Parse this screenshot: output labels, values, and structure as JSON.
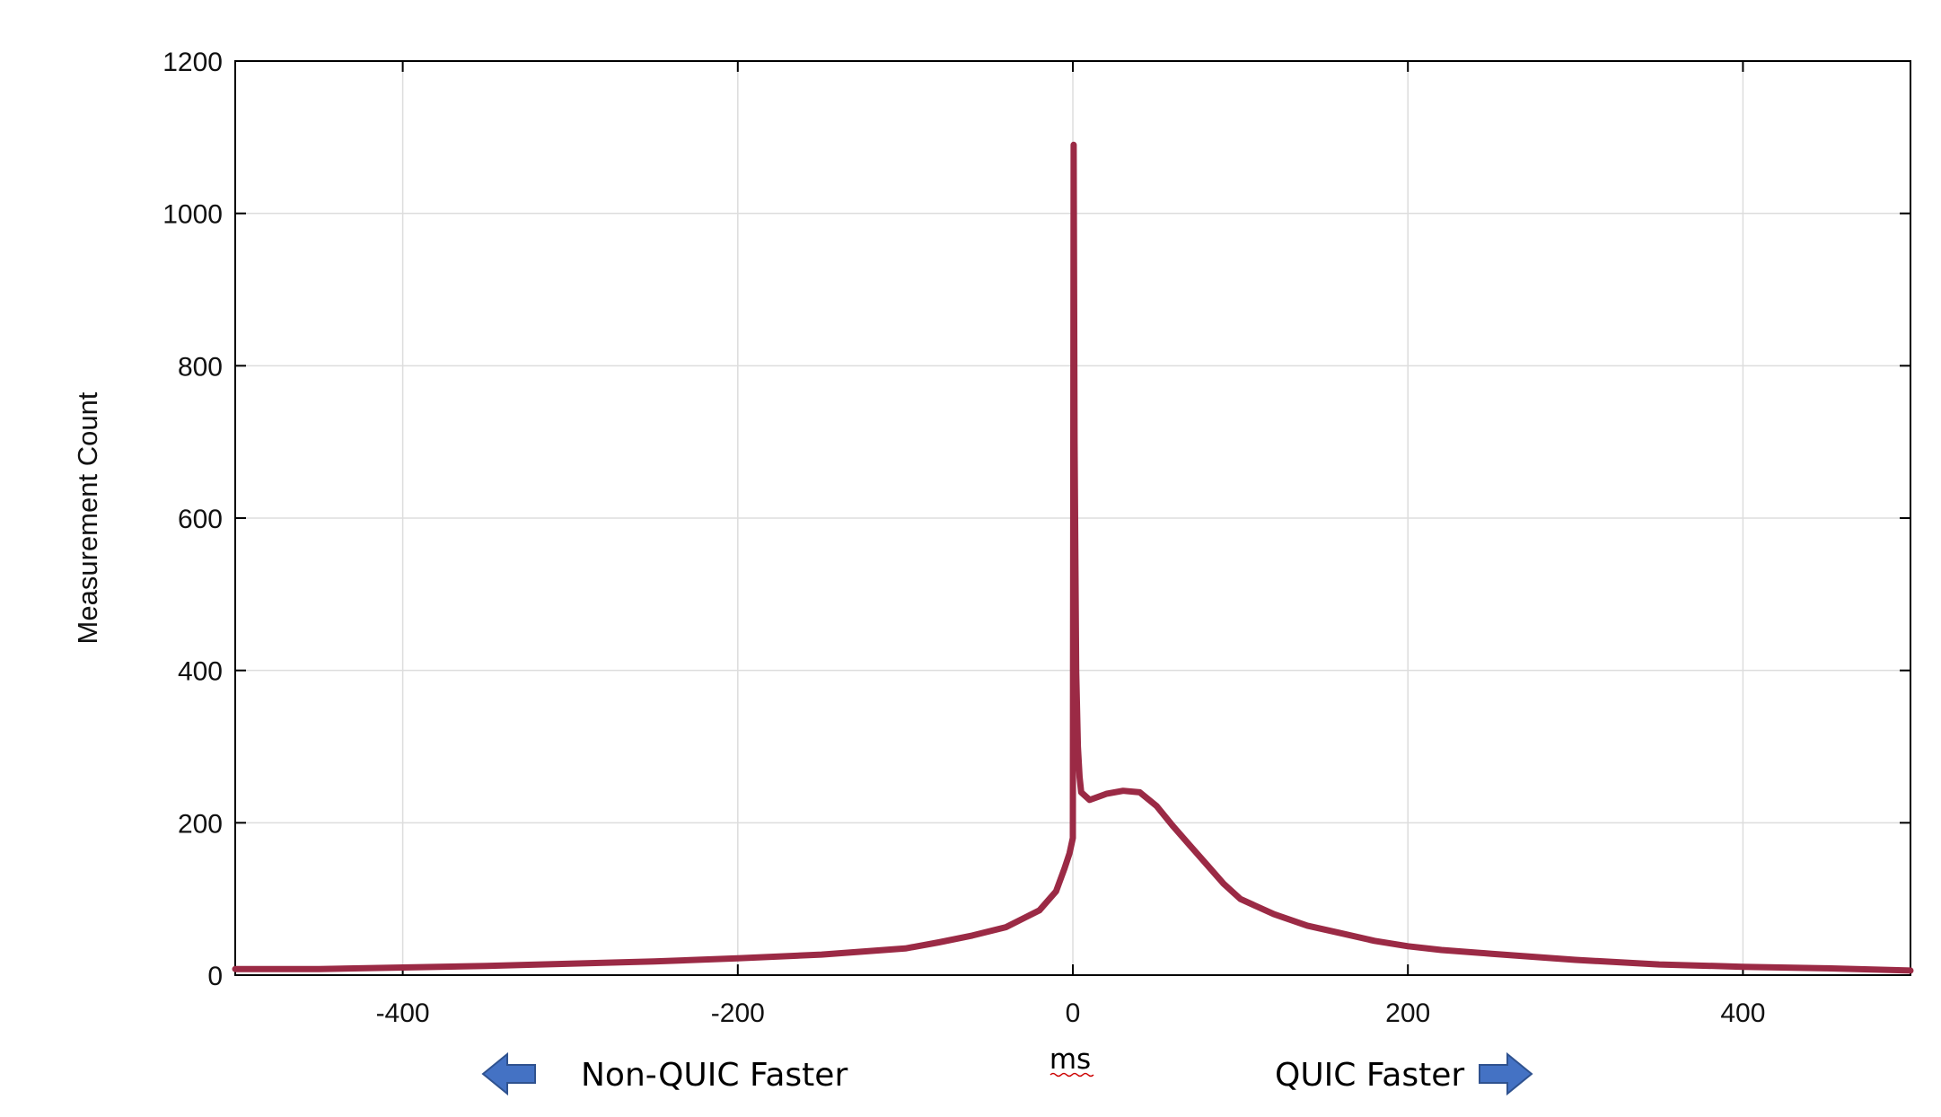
{
  "chart_data": {
    "type": "line",
    "title": "",
    "xlabel": "ms",
    "ylabel": "Measurement Count",
    "xlim": [
      -500,
      500
    ],
    "ylim": [
      0,
      1200
    ],
    "x_ticks": [
      -400,
      -200,
      0,
      200,
      400
    ],
    "x_tick_labels": [
      "-400",
      "-200",
      "0",
      "200",
      "400"
    ],
    "y_ticks": [
      0,
      200,
      400,
      600,
      800,
      1000,
      1200
    ],
    "y_tick_labels": [
      "0",
      "200",
      "400",
      "600",
      "800",
      "1000",
      "1200"
    ],
    "grid": true,
    "legend": "none",
    "line_color": "#9b2a45",
    "series": [
      {
        "x": [
          -500,
          -450,
          -400,
          -350,
          -300,
          -250,
          -200,
          -150,
          -100,
          -80,
          -60,
          -40,
          -20,
          -10,
          -5,
          -2,
          0,
          0.5,
          1,
          2,
          3,
          4,
          5,
          10,
          20,
          30,
          40,
          50,
          60,
          70,
          80,
          90,
          100,
          120,
          140,
          160,
          180,
          200,
          220,
          250,
          300,
          350,
          400,
          450,
          500
        ],
        "y": [
          8,
          8,
          10,
          12,
          15,
          18,
          22,
          27,
          35,
          43,
          52,
          63,
          85,
          110,
          140,
          160,
          180,
          1090,
          700,
          400,
          300,
          260,
          240,
          230,
          238,
          242,
          240,
          222,
          195,
          170,
          145,
          120,
          100,
          80,
          65,
          55,
          45,
          38,
          33,
          28,
          20,
          14,
          11,
          9,
          6
        ]
      }
    ],
    "annotations": {
      "left": "Non-QUIC Faster",
      "right": "QUIC Faster"
    },
    "arrow_color": "#4472c4"
  }
}
